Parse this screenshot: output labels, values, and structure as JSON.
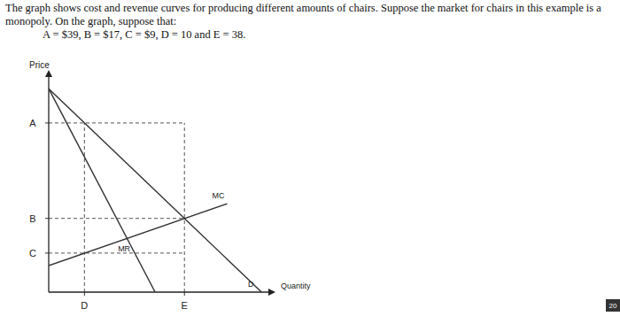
{
  "chart_data": {
    "type": "line",
    "title": "The graph shows cost and revenue curves for producing different amounts of chairs. Suppose the market for chairs in this example is a monopoly. On the graph, suppose that:",
    "subtitle": "A = $39, B = $17, C = $9, D = 10 and E = 38.",
    "y_label": "Price",
    "x_label": "Quantity",
    "annotations": [
      "20"
    ],
    "xlim": [
      0,
      62
    ],
    "ylim": [
      0,
      50
    ],
    "xticks": [
      {
        "value": 10,
        "label": "D"
      },
      {
        "value": 38,
        "label": "E"
      }
    ],
    "yticks": [
      {
        "value": 9,
        "label": "C"
      },
      {
        "value": 17,
        "label": "B"
      },
      {
        "value": 39,
        "label": "A"
      }
    ],
    "grid": false,
    "series": [
      {
        "name": "D",
        "color": "#333333",
        "line_style": "solid",
        "x": [
          0,
          59.6
        ],
        "values": [
          46.9,
          0
        ]
      },
      {
        "name": "MR",
        "color": "#333333",
        "line_style": "solid",
        "x": [
          0,
          29.8
        ],
        "values": [
          46.9,
          0
        ]
      },
      {
        "name": "MC",
        "color": "#333333",
        "line_style": "solid",
        "x": [
          0,
          50
        ],
        "values": [
          6.1,
          20.4
        ]
      }
    ]
  }
}
